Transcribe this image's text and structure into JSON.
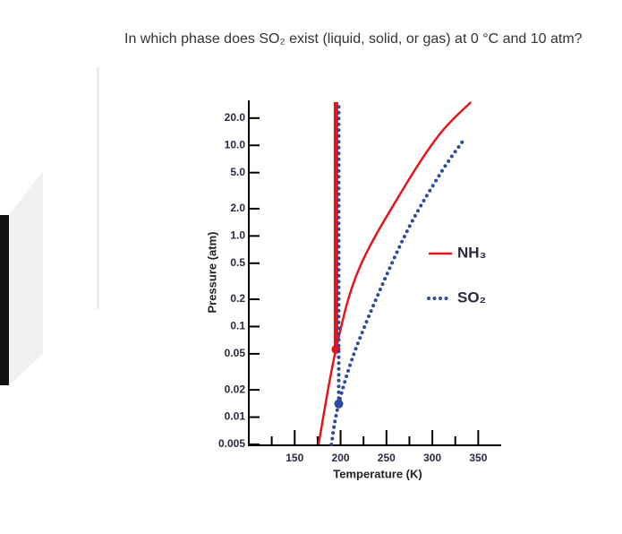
{
  "question": "In which phase does SO₂ exist (liquid, solid, or gas) at 0 °C and 10 atm?",
  "chart_data": {
    "type": "line",
    "x_label": "Temperature (K)",
    "y_label": "Pressure (atm)",
    "xlim": [
      100,
      375
    ],
    "xticks": [
      150,
      200,
      250,
      300,
      350
    ],
    "xminor_ticks": [
      125,
      175,
      225,
      275,
      325
    ],
    "ylim": [
      0.005,
      30
    ],
    "log_y": true,
    "yticks": [
      {
        "value": 20,
        "label": "20.0"
      },
      {
        "value": 10,
        "label": "10.0"
      },
      {
        "value": 5,
        "label": "5.0"
      },
      {
        "value": 2,
        "label": "2.0"
      },
      {
        "value": 1,
        "label": "1.0"
      },
      0.5,
      0.2,
      0.1,
      0.05,
      0.02,
      0.01,
      0.005
    ],
    "legend": "right",
    "series": [
      {
        "name": "NH₃",
        "color": "#e8141b",
        "style": "solid",
        "x": [
          176,
          195,
          220,
          269,
          308,
          342
        ],
        "values": [
          0.005,
          0.056,
          0.43,
          3.4,
          13.3,
          30
        ],
        "melting": {
          "x": [
            195,
            195
          ],
          "values": [
            0.056,
            30
          ]
        },
        "triple_point": {
          "x": 195,
          "value": 0.056
        }
      },
      {
        "name": "SO₂",
        "color": "#2c4a9e",
        "style": "dotted",
        "x": [
          190,
          198,
          220,
          269,
          308,
          335
        ],
        "values": [
          0.005,
          0.014,
          0.07,
          0.96,
          4.75,
          11.8
        ],
        "melting": {
          "x": [
            198,
            198
          ],
          "values": [
            0.014,
            30
          ]
        },
        "triple_point": {
          "x": 198,
          "value": 0.014
        }
      }
    ]
  }
}
